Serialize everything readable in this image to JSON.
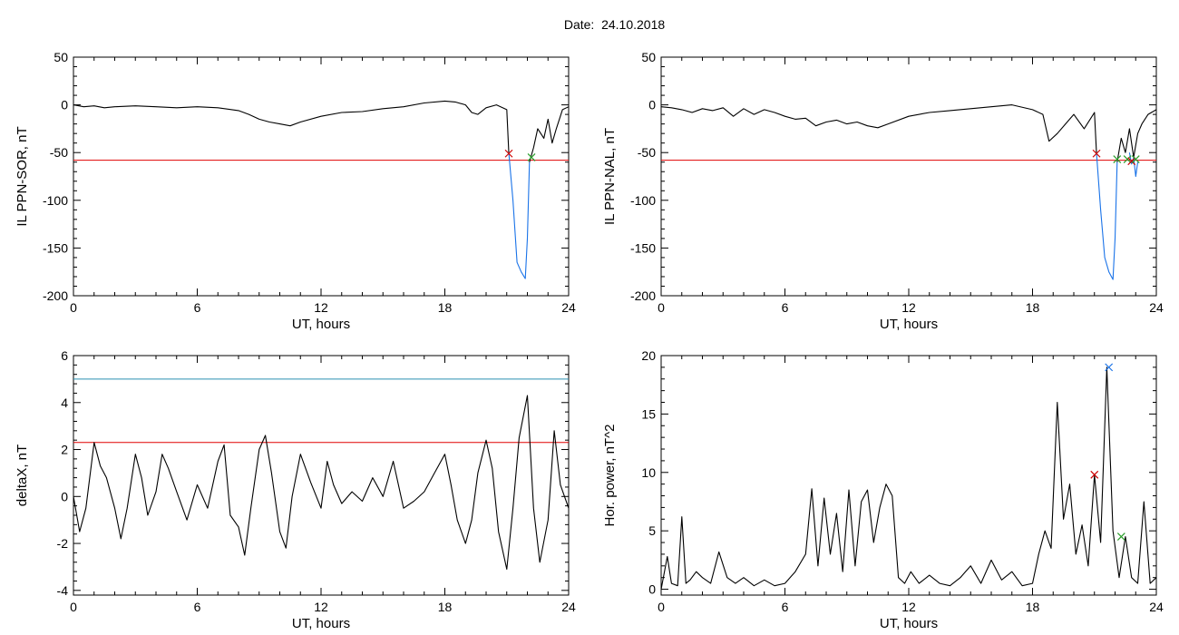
{
  "figure": {
    "title": "Date:  24.10.2018"
  },
  "chart_data": [
    {
      "type": "line",
      "xlabel": "UT, hours",
      "ylabel": "IL PPN-SOR, nT",
      "xlim": [
        0,
        24
      ],
      "ylim": [
        -200,
        50
      ],
      "xticks": [
        0,
        6,
        12,
        18,
        24
      ],
      "yticks": [
        -200,
        -150,
        -100,
        -50,
        0,
        50
      ],
      "threshold": {
        "value": -58,
        "color": "#e00000"
      },
      "series": [
        {
          "color": "#000000",
          "x": [
            0,
            0.5,
            1,
            1.5,
            2,
            3,
            4,
            5,
            6,
            7,
            8,
            8.5,
            9,
            9.5,
            10,
            10.5,
            11,
            12,
            13,
            14,
            15,
            16,
            17,
            18,
            18.5,
            19,
            19.3,
            19.6,
            20,
            20.5,
            21,
            21.1
          ],
          "y": [
            0,
            -2,
            -1,
            -3,
            -2,
            -1,
            -2,
            -3,
            -2,
            -3,
            -6,
            -10,
            -15,
            -18,
            -20,
            -22,
            -18,
            -12,
            -8,
            -7,
            -4,
            -2,
            2,
            4,
            3,
            0,
            -8,
            -10,
            -3,
            0,
            -5,
            -50
          ]
        },
        {
          "color": "#1a73e8",
          "x": [
            21.1,
            21.3,
            21.5,
            21.7,
            21.9,
            22.0,
            22.1
          ],
          "y": [
            -50,
            -100,
            -165,
            -175,
            -182,
            -140,
            -60
          ]
        },
        {
          "color": "#000000",
          "x": [
            22.1,
            22.3,
            22.5,
            22.8,
            23,
            23.2,
            23.4,
            23.7,
            24
          ],
          "y": [
            -60,
            -45,
            -25,
            -35,
            -15,
            -40,
            -25,
            -5,
            -2
          ]
        }
      ],
      "markers": [
        {
          "x": 21.1,
          "y": -51,
          "color": "#cc0000"
        },
        {
          "x": 22.2,
          "y": -55,
          "color": "#2a9d2a"
        }
      ]
    },
    {
      "type": "line",
      "xlabel": "UT, hours",
      "ylabel": "IL PPN-NAL, nT",
      "xlim": [
        0,
        24
      ],
      "ylim": [
        -200,
        50
      ],
      "xticks": [
        0,
        6,
        12,
        18,
        24
      ],
      "yticks": [
        -200,
        -150,
        -100,
        -50,
        0,
        50
      ],
      "threshold": {
        "value": -58,
        "color": "#e00000"
      },
      "series": [
        {
          "color": "#000000",
          "x": [
            0,
            0.5,
            1,
            1.5,
            2,
            2.5,
            3,
            3.5,
            4,
            4.5,
            5,
            5.5,
            6,
            6.5,
            7,
            7.5,
            8,
            8.5,
            9,
            9.5,
            10,
            10.5,
            11,
            12,
            13,
            14,
            15,
            16,
            17,
            18,
            18.5,
            18.8,
            19.2,
            19.6,
            20,
            20.5,
            21,
            21.1
          ],
          "y": [
            -2,
            -3,
            -5,
            -8,
            -4,
            -6,
            -3,
            -12,
            -4,
            -10,
            -5,
            -8,
            -12,
            -15,
            -14,
            -22,
            -18,
            -16,
            -20,
            -18,
            -22,
            -24,
            -20,
            -12,
            -8,
            -6,
            -4,
            -2,
            0,
            -5,
            -10,
            -38,
            -30,
            -20,
            -10,
            -25,
            -8,
            -50
          ]
        },
        {
          "color": "#1a73e8",
          "x": [
            21.1,
            21.3,
            21.5,
            21.7,
            21.9,
            22.0,
            22.1
          ],
          "y": [
            -50,
            -110,
            -160,
            -175,
            -183,
            -140,
            -60
          ]
        },
        {
          "color": "#000000",
          "x": [
            22.1,
            22.3,
            22.5,
            22.7,
            22.9,
            23.1,
            23.3,
            23.6,
            24
          ],
          "y": [
            -60,
            -35,
            -50,
            -25,
            -55,
            -30,
            -20,
            -10,
            -5
          ]
        },
        {
          "color": "#1a73e8",
          "x": [
            22.7,
            22.8,
            22.9,
            23.0,
            23.1
          ],
          "y": [
            -50,
            -62,
            -55,
            -75,
            -60
          ]
        }
      ],
      "markers": [
        {
          "x": 21.1,
          "y": -51,
          "color": "#cc0000"
        },
        {
          "x": 22.1,
          "y": -57,
          "color": "#2a9d2a"
        },
        {
          "x": 22.6,
          "y": -57,
          "color": "#2a9d2a"
        },
        {
          "x": 22.8,
          "y": -59,
          "color": "#cc0000"
        },
        {
          "x": 23.0,
          "y": -57,
          "color": "#2a9d2a"
        }
      ]
    },
    {
      "type": "line",
      "xlabel": "UT, hours",
      "ylabel": "deltaX, nT",
      "xlim": [
        0,
        24
      ],
      "ylim": [
        -4.2,
        6
      ],
      "xticks": [
        0,
        6,
        12,
        18,
        24
      ],
      "yticks": [
        -4,
        -2,
        0,
        2,
        4,
        6
      ],
      "threshold": {
        "value": 2.3,
        "color": "#e00000"
      },
      "threshold2": {
        "value": 5.0,
        "color": "#2a8fb0"
      },
      "series": [
        {
          "color": "#000000",
          "x": [
            0,
            0.3,
            0.6,
            1.0,
            1.3,
            1.6,
            2.0,
            2.3,
            2.6,
            3.0,
            3.3,
            3.6,
            4.0,
            4.3,
            4.6,
            5.0,
            5.5,
            6.0,
            6.5,
            7.0,
            7.3,
            7.6,
            8.0,
            8.3,
            8.6,
            9.0,
            9.3,
            9.6,
            10.0,
            10.3,
            10.6,
            11.0,
            11.5,
            12.0,
            12.3,
            12.6,
            13.0,
            13.5,
            14.0,
            14.5,
            15.0,
            15.5,
            16.0,
            16.5,
            17.0,
            17.5,
            18.0,
            18.3,
            18.6,
            19.0,
            19.3,
            19.6,
            20.0,
            20.3,
            20.6,
            21.0,
            21.3,
            21.6,
            22.0,
            22.3,
            22.6,
            23.0,
            23.3,
            23.6,
            24.0
          ],
          "y": [
            0,
            -1.5,
            -0.5,
            2.3,
            1.3,
            0.8,
            -0.5,
            -1.8,
            -0.5,
            1.8,
            0.8,
            -0.8,
            0.2,
            1.8,
            1.2,
            0.2,
            -1.0,
            0.5,
            -0.5,
            1.5,
            2.2,
            -0.8,
            -1.3,
            -2.5,
            -0.5,
            2.0,
            2.6,
            1.0,
            -1.5,
            -2.2,
            0.0,
            1.8,
            0.6,
            -0.5,
            1.5,
            0.5,
            -0.3,
            0.2,
            -0.2,
            0.8,
            0.0,
            1.5,
            -0.5,
            -0.2,
            0.2,
            1.0,
            1.8,
            0.5,
            -1.0,
            -2.0,
            -1.0,
            1.0,
            2.4,
            1.2,
            -1.5,
            -3.1,
            -0.5,
            2.5,
            4.3,
            -0.5,
            -2.8,
            -1.0,
            2.8,
            0.5,
            -0.5
          ]
        }
      ],
      "markers": []
    },
    {
      "type": "line",
      "xlabel": "UT, hours",
      "ylabel": "Hor. power, nT^2",
      "xlim": [
        0,
        24
      ],
      "ylim": [
        -0.5,
        20
      ],
      "xticks": [
        0,
        6,
        12,
        18,
        24
      ],
      "yticks": [
        0,
        5,
        10,
        15,
        20
      ],
      "series": [
        {
          "color": "#000000",
          "x": [
            0,
            0.3,
            0.5,
            0.8,
            1.0,
            1.2,
            1.4,
            1.7,
            2.0,
            2.4,
            2.8,
            3.2,
            3.6,
            4.0,
            4.5,
            5.0,
            5.5,
            6.0,
            6.5,
            7.0,
            7.3,
            7.6,
            7.9,
            8.2,
            8.5,
            8.8,
            9.1,
            9.4,
            9.7,
            10.0,
            10.3,
            10.6,
            10.9,
            11.2,
            11.5,
            11.8,
            12.1,
            12.5,
            13.0,
            13.5,
            14.0,
            14.5,
            15.0,
            15.5,
            16.0,
            16.5,
            17.0,
            17.5,
            18.0,
            18.3,
            18.6,
            18.9,
            19.2,
            19.5,
            19.8,
            20.1,
            20.4,
            20.7,
            21.0,
            21.3,
            21.6,
            21.9,
            22.2,
            22.5,
            22.8,
            23.1,
            23.4,
            23.7,
            24.0
          ],
          "y": [
            0,
            2.8,
            0.5,
            0.3,
            6.2,
            0.5,
            0.8,
            1.5,
            1.0,
            0.5,
            3.2,
            1.0,
            0.5,
            1.0,
            0.3,
            0.8,
            0.3,
            0.5,
            1.5,
            3.0,
            8.6,
            2.0,
            7.8,
            3.0,
            6.5,
            1.5,
            8.5,
            2.0,
            7.5,
            8.5,
            4.0,
            7.0,
            9.0,
            8.0,
            1.0,
            0.5,
            1.5,
            0.5,
            1.2,
            0.5,
            0.3,
            1.0,
            2.0,
            0.5,
            2.5,
            0.8,
            1.5,
            0.3,
            0.5,
            3.0,
            5.0,
            3.5,
            16.0,
            6.0,
            9.0,
            3.0,
            5.5,
            2.0,
            9.8,
            4.0,
            19.0,
            5.0,
            1.0,
            4.5,
            1.0,
            0.5,
            7.5,
            0.5,
            1.0
          ]
        }
      ],
      "markers": [
        {
          "x": 21.0,
          "y": 9.8,
          "color": "#cc0000"
        },
        {
          "x": 21.7,
          "y": 19.0,
          "color": "#1a73e8"
        },
        {
          "x": 22.3,
          "y": 4.5,
          "color": "#2a9d2a"
        }
      ]
    }
  ]
}
